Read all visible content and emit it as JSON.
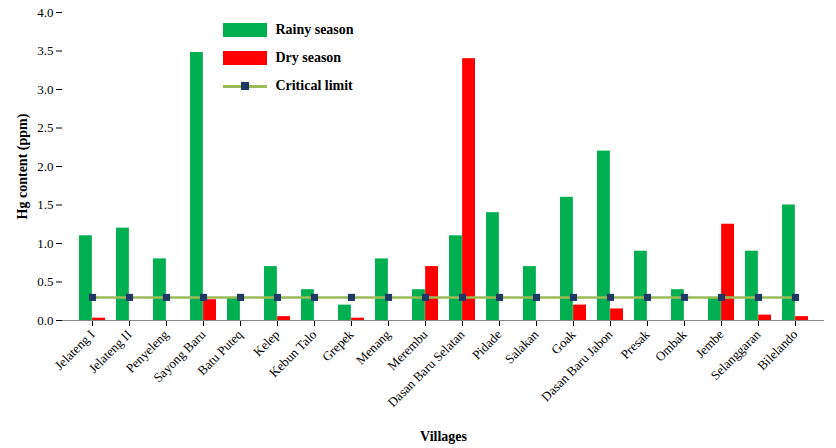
{
  "chart_data": {
    "type": "bar",
    "x_label": "Villages",
    "y_label": "Hg content (ppm)",
    "categories": [
      "Jelateng I",
      "Jelateng II",
      "Penyeleng",
      "Sayong Baru",
      "Batu Puteq",
      "Kelep",
      "Kebun Talo",
      "Grepek",
      "Menang",
      "Merembu",
      "Dasan Baru Selatan",
      "Pidade",
      "Salakan",
      "Goak",
      "Dasan Baru Jabon",
      "Presak",
      "Ombak",
      "Jembe",
      "Selanggaran",
      "Bilelando"
    ],
    "series": [
      {
        "name": "Rainy season",
        "type": "bar",
        "color": "#00b050",
        "values": [
          1.1,
          1.2,
          0.8,
          3.48,
          0.3,
          0.7,
          0.4,
          0.2,
          0.8,
          0.4,
          1.1,
          1.4,
          0.7,
          1.6,
          2.2,
          0.9,
          0.4,
          0.3,
          0.9,
          1.5
        ]
      },
      {
        "name": "Dry season",
        "type": "bar",
        "color": "#ff0000",
        "values": [
          0.03,
          0,
          0,
          0.27,
          0,
          0.05,
          0,
          0.03,
          0,
          0.7,
          3.4,
          0,
          0,
          0.2,
          0.15,
          0,
          0,
          1.25,
          0.07,
          0.05
        ]
      },
      {
        "name": "Critical limit",
        "type": "line",
        "color": "#9bbb59",
        "marker": "square",
        "values": [
          0.3,
          0.3,
          0.3,
          0.3,
          0.3,
          0.3,
          0.3,
          0.3,
          0.3,
          0.3,
          0.3,
          0.3,
          0.3,
          0.3,
          0.3,
          0.3,
          0.3,
          0.3,
          0.3,
          0.3
        ]
      }
    ],
    "ylim": [
      0,
      4
    ],
    "yticks": [
      0,
      0.5,
      1,
      1.5,
      2,
      2.5,
      3,
      3.5,
      4
    ],
    "grid": false,
    "legend": "upper left"
  }
}
